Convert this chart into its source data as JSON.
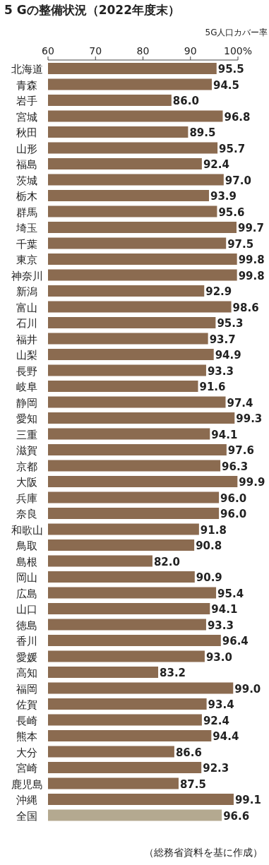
{
  "chart_data": {
    "type": "bar",
    "orientation": "horizontal",
    "title": "5 Gの整備状況（2022年度末）",
    "xlabel": "5G人口カバー率",
    "categories": [
      "北海道",
      "青森",
      "岩手",
      "宮城",
      "秋田",
      "山形",
      "福島",
      "茨城",
      "栃木",
      "群馬",
      "埼玉",
      "千葉",
      "東京",
      "神奈川",
      "新潟",
      "富山",
      "石川",
      "福井",
      "山梨",
      "長野",
      "岐阜",
      "静岡",
      "愛知",
      "三重",
      "滋賀",
      "京都",
      "大阪",
      "兵庫",
      "奈良",
      "和歌山",
      "鳥取",
      "島根",
      "岡山",
      "広島",
      "山口",
      "徳島",
      "香川",
      "愛媛",
      "高知",
      "福岡",
      "佐賀",
      "長崎",
      "熊本",
      "大分",
      "宮崎",
      "鹿児島",
      "沖縄",
      "全国"
    ],
    "values": [
      95.5,
      94.5,
      86.0,
      96.8,
      89.5,
      95.7,
      92.4,
      97.0,
      93.9,
      95.6,
      99.7,
      97.5,
      99.8,
      99.8,
      92.9,
      98.6,
      95.3,
      93.7,
      94.9,
      93.3,
      91.6,
      97.4,
      99.3,
      94.1,
      97.6,
      96.3,
      99.9,
      96.0,
      96.0,
      91.8,
      90.8,
      82.0,
      90.9,
      95.4,
      94.1,
      93.3,
      96.4,
      93.0,
      83.2,
      99.0,
      93.4,
      92.4,
      94.4,
      86.6,
      92.3,
      87.5,
      99.1,
      96.6
    ],
    "colors": [
      "#8b6b50",
      "#8b6b50",
      "#8b6b50",
      "#8b6b50",
      "#8b6b50",
      "#8b6b50",
      "#8b6b50",
      "#8b6b50",
      "#8b6b50",
      "#8b6b50",
      "#8b6b50",
      "#8b6b50",
      "#8b6b50",
      "#8b6b50",
      "#8b6b50",
      "#8b6b50",
      "#8b6b50",
      "#8b6b50",
      "#8b6b50",
      "#8b6b50",
      "#8b6b50",
      "#8b6b50",
      "#8b6b50",
      "#8b6b50",
      "#8b6b50",
      "#8b6b50",
      "#8b6b50",
      "#8b6b50",
      "#8b6b50",
      "#8b6b50",
      "#8b6b50",
      "#8b6b50",
      "#8b6b50",
      "#8b6b50",
      "#8b6b50",
      "#8b6b50",
      "#8b6b50",
      "#8b6b50",
      "#8b6b50",
      "#8b6b50",
      "#8b6b50",
      "#8b6b50",
      "#8b6b50",
      "#8b6b50",
      "#8b6b50",
      "#8b6b50",
      "#8b6b50",
      "#b4a990"
    ],
    "xlim": [
      60,
      100
    ],
    "xticks": [
      60,
      70,
      80,
      90,
      {
        "value": 100,
        "label": "100%"
      }
    ],
    "value_labels": [
      "95.5",
      "94.5",
      "86.0",
      "96.8",
      "89.5",
      "95.7",
      "92.4",
      "97.0",
      "93.9",
      "95.6",
      "99.7",
      "97.5",
      "99.8",
      "99.8",
      "92.9",
      "98.6",
      "95.3",
      "93.7",
      "94.9",
      "93.3",
      "91.6",
      "97.4",
      "99.3",
      "94.1",
      "97.6",
      "96.3",
      "99.9",
      "96.0",
      "96.0",
      "91.8",
      "90.8",
      "82.0",
      "90.9",
      "95.4",
      "94.1",
      "93.3",
      "96.4",
      "93.0",
      "83.2",
      "99.0",
      "93.4",
      "92.4",
      "94.4",
      "86.6",
      "92.3",
      "87.5",
      "99.1",
      "96.6"
    ],
    "annotations": [
      "（総務省資料を基に作成）"
    ]
  }
}
